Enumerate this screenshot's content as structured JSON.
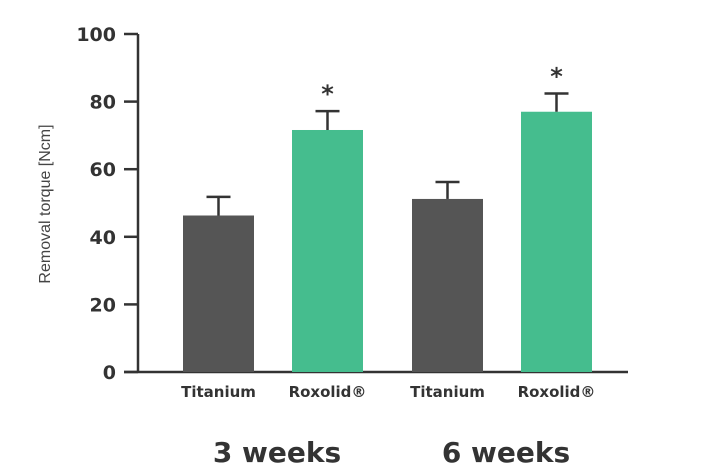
{
  "chart_data": {
    "type": "bar",
    "title": "",
    "xlabel": "",
    "ylabel": "Removal torque [Ncm]",
    "ylim": [
      0,
      100
    ],
    "yticks": [
      0,
      20,
      40,
      60,
      80,
      100
    ],
    "ytick_labels": [
      "0",
      "20",
      "40",
      "60",
      "80",
      "100"
    ],
    "grid": false,
    "categories": [
      "Titanium",
      "Roxolid®",
      "Titanium",
      "Roxolid®"
    ],
    "groups": [
      {
        "label": "3 weeks",
        "bar_indices": [
          0,
          1
        ]
      },
      {
        "label": "6 weeks",
        "bar_indices": [
          2,
          3
        ]
      }
    ],
    "values": [
      46.3,
      71.6,
      51.2,
      77.0
    ],
    "error_upper": [
      51.8,
      77.2,
      56.2,
      82.4
    ],
    "significance": [
      "",
      "*",
      "",
      "*"
    ],
    "bar_colors": [
      "#555555",
      "#45BD8E",
      "#555555",
      "#45BD8E"
    ],
    "axis_color": "#333333",
    "text_color": "#333333"
  }
}
